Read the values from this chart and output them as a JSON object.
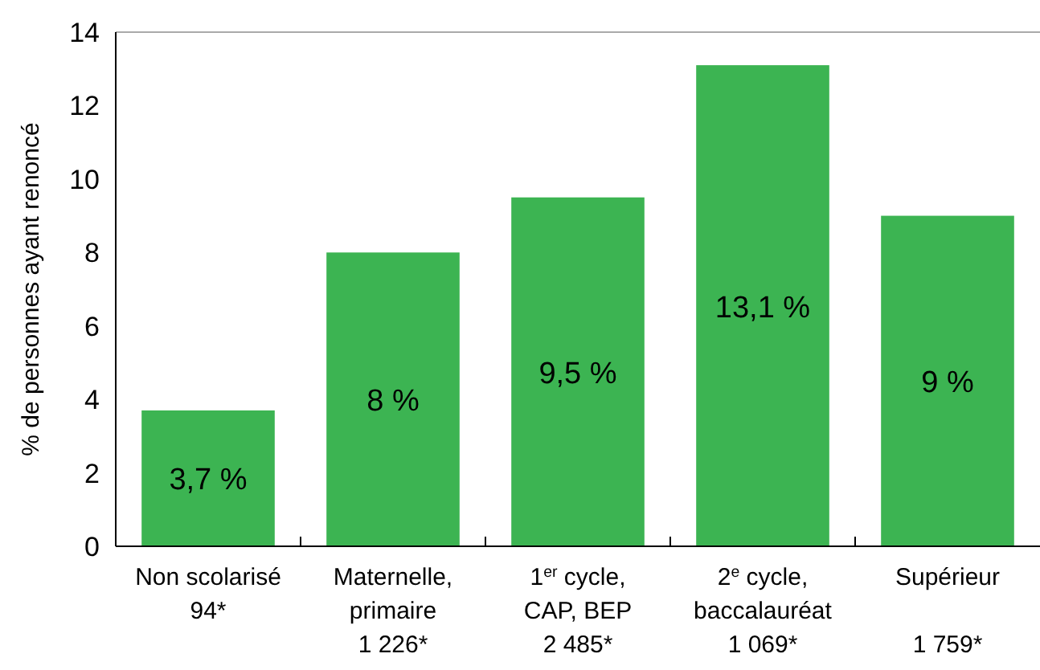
{
  "chart_data": {
    "type": "bar",
    "ylabel": "% de personnes ayant renoncé",
    "categories": [
      "Non scolarisé\n94*",
      "Maternelle,\nprimaire\n1 226*",
      "1$^{er}$ cycle,\nCAP, BEP\n2 485*",
      "2$^{e}$ cycle,\nbaccalauréat\n1 069*",
      "Supérieur\n\n1 759*"
    ],
    "values": [
      3.7,
      8,
      9.5,
      13.1,
      9
    ],
    "value_labels": [
      "3,7 %",
      "8 %",
      "9,5 %",
      "13,1 %",
      "9 %"
    ],
    "color": "#3cb452",
    "ylim": [
      0,
      14
    ],
    "yticks": [
      0,
      2,
      4,
      6,
      8,
      10,
      12,
      14
    ],
    "grid": false
  }
}
